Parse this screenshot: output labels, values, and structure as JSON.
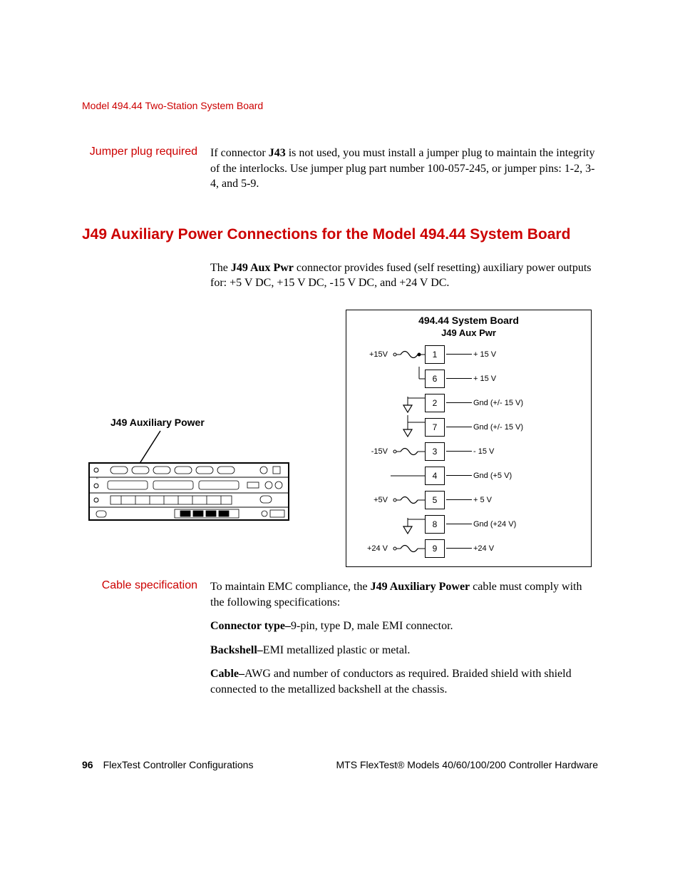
{
  "colors": {
    "accent": "#cc0000",
    "text": "#000000",
    "bg": "#ffffff"
  },
  "header": {
    "title": "Model 494.44 Two-Station System Board"
  },
  "jumper": {
    "label": "Jumper plug required",
    "para": "If connector J43 is not used, you must install a jumper plug to maintain the integrity of the interlocks. Use jumper plug part number 100-057-245, or jumper pins: 1-2, 3-4, and 5-9.",
    "bold": "J43"
  },
  "title2": "J49 Auxiliary Power Connections for the Model 494.44 System Board",
  "intro": {
    "pre": "The ",
    "bold": "J49 Aux Pwr",
    "post": " connector provides fused (self resetting) auxiliary power outputs for: +5 V DC, +15 V DC, -15 V DC, and +24 V DC."
  },
  "diagram": {
    "aux_label": "J49 Auxiliary Power",
    "box_title": "494.44 System Board",
    "box_sub": "J49 Aux Pwr",
    "rows": [
      {
        "left": "+15V",
        "sym": "fuse-dot",
        "num": "1",
        "right": "+ 15 V"
      },
      {
        "left": "",
        "sym": "link",
        "num": "6",
        "right": "+ 15 V"
      },
      {
        "left": "",
        "sym": "gnd",
        "num": "2",
        "right": "Gnd (+/- 15 V)"
      },
      {
        "left": "",
        "sym": "gnd-link",
        "num": "7",
        "right": "Gnd (+/- 15 V)"
      },
      {
        "left": "-15V",
        "sym": "fuse",
        "num": "3",
        "right": "- 15 V"
      },
      {
        "left": "",
        "sym": "",
        "num": "4",
        "right": "Gnd (+5 V)"
      },
      {
        "left": "+5V",
        "sym": "fuse",
        "num": "5",
        "right": "+ 5 V"
      },
      {
        "left": "",
        "sym": "gnd",
        "num": "8",
        "right": "Gnd (+24 V)"
      },
      {
        "left": "+24 V",
        "sym": "fuse",
        "num": "9",
        "right": "+24 V"
      }
    ]
  },
  "cable": {
    "label": "Cable specification",
    "p1_pre": "To maintain EMC compliance, the ",
    "p1_bold": "J49 Auxiliary Power",
    "p1_post": " cable must comply with the following specifications:",
    "p2_bold": "Connector type–",
    "p2_rest": "9-pin, type D, male EMI connector.",
    "p3_bold": "Backshell–",
    "p3_rest": "EMI metallized plastic or metal.",
    "p4_bold": "Cable–",
    "p4_rest": "AWG and number of conductors as required. Braided shield with shield connected to the metallized backshell at the chassis."
  },
  "footer": {
    "page": "96",
    "left": "FlexTest Controller Configurations",
    "right": "MTS FlexTest® Models 40/60/100/200 Controller Hardware"
  }
}
